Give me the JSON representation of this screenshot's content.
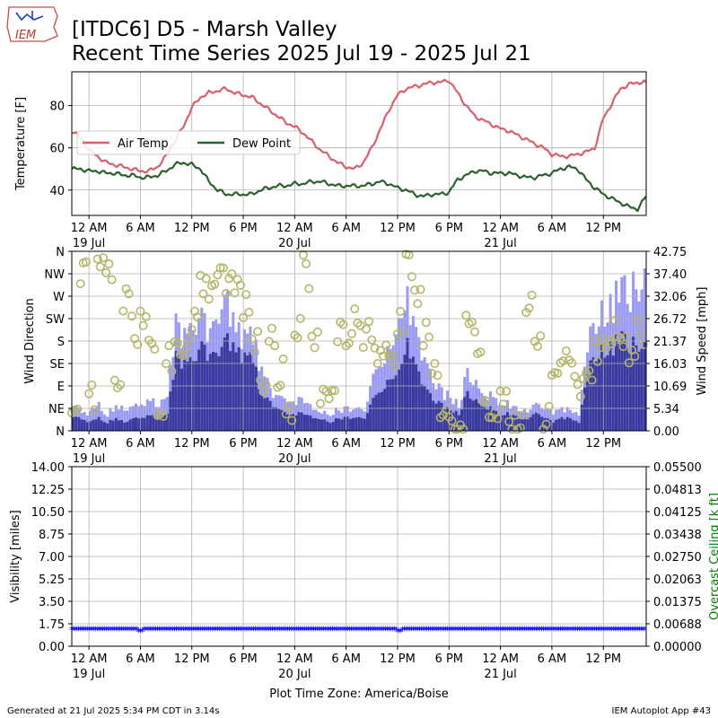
{
  "header": {
    "logo_text": "IEM",
    "title_line1": "[ITDC6] D5 - Marsh Valley",
    "title_line2": "Recent Time Series 2025 Jul 19 - 2025 Jul 21"
  },
  "footer": {
    "generated": "Generated at 21 Jul 2025 5:34 PM CDT in 3.14s",
    "app": "IEM Autoplot App #43",
    "timezone_label": "Plot Time Zone: America/Boise"
  },
  "x_axis": {
    "start_hours": -2,
    "end_hours": 65,
    "ticks": [
      {
        "h": 0,
        "label": "12 AM",
        "date": "19 Jul"
      },
      {
        "h": 6,
        "label": "6 AM",
        "date": ""
      },
      {
        "h": 12,
        "label": "12 PM",
        "date": ""
      },
      {
        "h": 18,
        "label": "6 PM",
        "date": ""
      },
      {
        "h": 24,
        "label": "12 AM",
        "date": "20 Jul"
      },
      {
        "h": 30,
        "label": "6 AM",
        "date": ""
      },
      {
        "h": 36,
        "label": "12 PM",
        "date": ""
      },
      {
        "h": 42,
        "label": "6 PM",
        "date": ""
      },
      {
        "h": 48,
        "label": "12 AM",
        "date": "21 Jul"
      },
      {
        "h": 54,
        "label": "6 AM",
        "date": ""
      },
      {
        "h": 60,
        "label": "12 PM",
        "date": ""
      }
    ]
  },
  "colors": {
    "air_temp": "#d9606a",
    "dew_point": "#2f5f2f",
    "gust": "#9a9af5",
    "speed": "#3a3a9e",
    "direction": "#b5b569",
    "visibility": "#0000ff",
    "ceiling_label": "#008000",
    "grid": "#b0b0b0"
  },
  "chart_data": [
    {
      "type": "line",
      "ylabel": "Temperature [F]",
      "ylim": [
        28,
        96
      ],
      "yticks": [
        40,
        60,
        80
      ],
      "grid": true,
      "legend_position": "center-left",
      "x_units": "hours since 19 Jul 12 AM",
      "series": [
        {
          "name": "Air Temp",
          "x": [
            -2,
            -1,
            0,
            1,
            2,
            3,
            4,
            5,
            6,
            7,
            8,
            9,
            10,
            11,
            12,
            13,
            14,
            15,
            16,
            17,
            18,
            19,
            20,
            21,
            22,
            23,
            24,
            25,
            26,
            27,
            28,
            29,
            30,
            31,
            32,
            33,
            34,
            35,
            36,
            37,
            38,
            39,
            40,
            41,
            42,
            43,
            44,
            45,
            46,
            47,
            48,
            49,
            50,
            51,
            52,
            53,
            54,
            55,
            56,
            57,
            58,
            59,
            60,
            61,
            62,
            63,
            64,
            65
          ],
          "values": [
            68,
            65,
            59,
            56,
            53,
            52,
            51,
            50,
            49,
            49,
            51,
            56,
            63,
            70,
            79,
            84,
            86,
            87,
            88,
            86,
            85,
            84,
            81,
            78,
            75,
            72,
            70,
            67,
            63,
            59,
            56,
            53,
            51,
            50,
            53,
            60,
            69,
            78,
            85,
            88,
            89,
            90,
            91,
            91,
            92,
            86,
            80,
            75,
            73,
            71,
            69,
            68,
            66,
            64,
            62,
            60,
            57,
            56,
            56,
            57,
            58,
            60,
            74,
            81,
            88,
            90,
            91,
            91
          ]
        },
        {
          "name": "Dew Point",
          "x": [
            -2,
            -1,
            0,
            1,
            2,
            3,
            4,
            5,
            6,
            7,
            8,
            9,
            10,
            11,
            12,
            13,
            14,
            15,
            16,
            17,
            18,
            19,
            20,
            21,
            22,
            23,
            24,
            25,
            26,
            27,
            28,
            29,
            30,
            31,
            32,
            33,
            34,
            35,
            36,
            37,
            38,
            39,
            40,
            41,
            42,
            43,
            44,
            45,
            46,
            47,
            48,
            49,
            50,
            51,
            52,
            53,
            54,
            55,
            56,
            57,
            58,
            59,
            60,
            61,
            62,
            63,
            64,
            65
          ],
          "values": [
            50,
            50,
            49,
            49,
            48,
            48,
            47,
            47,
            46,
            46,
            47,
            49,
            52,
            53,
            52,
            50,
            44,
            40,
            38,
            38,
            38,
            38,
            40,
            41,
            42,
            42,
            43,
            43,
            44,
            44,
            43,
            42,
            42,
            42,
            42,
            43,
            44,
            43,
            41,
            40,
            38,
            37,
            38,
            38,
            39,
            45,
            47,
            49,
            49,
            48,
            48,
            48,
            47,
            46,
            46,
            47,
            48,
            50,
            51,
            50,
            45,
            41,
            38,
            36,
            34,
            32,
            31,
            37
          ]
        }
      ]
    },
    {
      "type": "bar",
      "ylabel": "Wind Direction",
      "y2label": "Wind Speed [mph]",
      "direction_ticks": [
        "N",
        "NE",
        "E",
        "SE",
        "S",
        "SW",
        "W",
        "NW",
        "N"
      ],
      "speed_ticks": [
        "0.00",
        "5.34",
        "10.69",
        "16.03",
        "21.37",
        "26.72",
        "32.06",
        "37.40",
        "42.75"
      ],
      "speed_ylim": [
        0,
        42.75
      ],
      "grid": true,
      "x_units": "hours since 19 Jul 12 AM",
      "hours": [
        -2,
        -1,
        0,
        1,
        2,
        3,
        4,
        5,
        6,
        7,
        8,
        9,
        10,
        11,
        12,
        13,
        14,
        15,
        16,
        17,
        18,
        19,
        20,
        21,
        22,
        23,
        24,
        25,
        26,
        27,
        28,
        29,
        30,
        31,
        32,
        33,
        34,
        35,
        36,
        37,
        38,
        39,
        40,
        41,
        42,
        43,
        44,
        45,
        46,
        47,
        48,
        49,
        50,
        51,
        52,
        53,
        54,
        55,
        56,
        57,
        58,
        59,
        60,
        61,
        62,
        63,
        64,
        65
      ],
      "speed": [
        3,
        3,
        2,
        3,
        2,
        3,
        2,
        3,
        3,
        4,
        3,
        4,
        17,
        16,
        18,
        19,
        17,
        18,
        21,
        19,
        18,
        17,
        8,
        7,
        5,
        4,
        4,
        4,
        3,
        3,
        2,
        3,
        3,
        3,
        3,
        8,
        10,
        12,
        13,
        20,
        16,
        10,
        7,
        6,
        5,
        4,
        9,
        7,
        6,
        5,
        4,
        4,
        3,
        3,
        4,
        3,
        2,
        3,
        3,
        2,
        14,
        18,
        19,
        20,
        22,
        21,
        21,
        22
      ],
      "gust": [
        5,
        5,
        4,
        6,
        4,
        6,
        5,
        6,
        6,
        8,
        6,
        8,
        24,
        22,
        27,
        25,
        22,
        26,
        29,
        24,
        23,
        22,
        14,
        10,
        8,
        7,
        7,
        7,
        5,
        5,
        4,
        5,
        5,
        5,
        5,
        14,
        17,
        19,
        23,
        30,
        25,
        16,
        11,
        9,
        8,
        6,
        14,
        11,
        9,
        8,
        7,
        6,
        5,
        5,
        6,
        5,
        4,
        5,
        5,
        4,
        20,
        26,
        28,
        30,
        33,
        34,
        36,
        42
      ],
      "direction_deg": [
        50,
        330,
        60,
        320,
        310,
        90,
        250,
        200,
        240,
        180,
        60,
        150,
        160,
        150,
        220,
        280,
        290,
        300,
        285,
        270,
        245,
        180,
        110,
        190,
        120,
        50,
        210,
        320,
        190,
        80,
        80,
        190,
        200,
        220,
        190,
        160,
        140,
        160,
        220,
        330,
        270,
        190,
        100,
        30,
        10,
        15,
        210,
        180,
        30,
        20,
        60,
        20,
        10,
        250,
        190,
        30,
        110,
        130,
        110,
        80,
        130,
        150,
        180,
        200,
        180,
        170,
        190,
        190
      ]
    },
    {
      "type": "scatter",
      "ylabel": "Visibility [miles]",
      "y2label": "Overcast Ceiling [k ft]",
      "ylim": [
        0,
        14
      ],
      "yticks": [
        "0.00",
        "1.75",
        "3.50",
        "5.25",
        "7.00",
        "8.75",
        "10.50",
        "12.25",
        "14.00"
      ],
      "y2ticks": [
        "0.00000",
        "0.00688",
        "0.01375",
        "0.02063",
        "0.02750",
        "0.03438",
        "0.04125",
        "0.04813",
        "0.05500"
      ],
      "y2lim": [
        0,
        0.055
      ],
      "grid": true,
      "x_range_hours": [
        -2,
        65
      ],
      "visibility_value": 1.3,
      "gap_hours": [
        6,
        36.2
      ]
    }
  ]
}
